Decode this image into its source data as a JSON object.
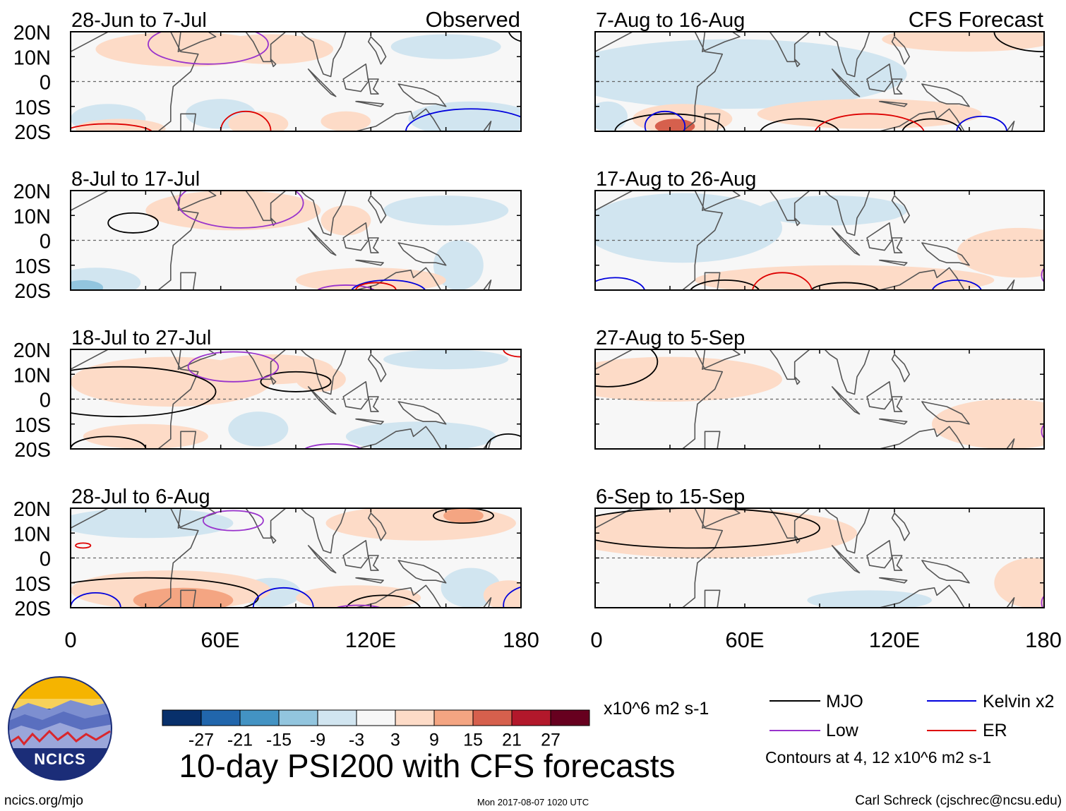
{
  "figure": {
    "title": "10-day PSI200 with CFS forecasts",
    "observed_label": "Observed",
    "forecast_label": "CFS Forecast",
    "website": "ncics.org/mjo",
    "timestamp": "Mon 2017-08-07 1020 UTC",
    "author": "Carl Schreck (cjschrec@ncsu.edu)",
    "logo_text": "NCICS"
  },
  "chart_data": {
    "type": "heatmap",
    "variable": "PSI200 anomaly",
    "units": "x10^6 m2 s-1",
    "latitude_range": [
      -20,
      20
    ],
    "longitude_range": [
      0,
      180
    ],
    "y_ticks": [
      "20N",
      "10N",
      "0",
      "10S",
      "20S"
    ],
    "x_ticks": [
      "0",
      "60E",
      "120E",
      "180"
    ],
    "colorbar": {
      "tick_labels": [
        "-27",
        "-21",
        "-15",
        "-9",
        "-3",
        "3",
        "9",
        "15",
        "21",
        "27"
      ],
      "colors": [
        "#08306b",
        "#2166ac",
        "#4393c3",
        "#92c5de",
        "#d1e5f0",
        "#f7f7f7",
        "#fddbc7",
        "#f4a582",
        "#d6604d",
        "#b2182b",
        "#67001f"
      ]
    },
    "legend": {
      "entries": [
        {
          "label": "MJO",
          "color": "#000000"
        },
        {
          "label": "Low",
          "color": "#9933cc"
        },
        {
          "label": "Kelvin x2",
          "color": "#0000dd"
        },
        {
          "label": "ER",
          "color": "#dd0000"
        }
      ],
      "note": "Contours at 4, 12 x10^6 m2 s-1"
    },
    "panels": [
      {
        "title": "28-Jun to 7-Jul",
        "column": "observed",
        "anomalies": [
          {
            "lon": 45,
            "lat": 13,
            "rlon": 35,
            "rlat": 7,
            "v": 7
          },
          {
            "lon": 80,
            "lat": 13,
            "rlon": 25,
            "rlat": 6,
            "v": 5
          },
          {
            "lon": 150,
            "lat": 14,
            "rlon": 22,
            "rlat": 5,
            "v": -4
          },
          {
            "lon": 160,
            "lat": -15,
            "rlon": 25,
            "rlat": 7,
            "v": -7
          },
          {
            "lon": 15,
            "lat": -15,
            "rlon": 15,
            "rlat": 6,
            "v": -5
          },
          {
            "lon": 60,
            "lat": -13,
            "rlon": 14,
            "rlat": 6,
            "v": -4
          },
          {
            "lon": 75,
            "lat": -17,
            "rlon": 12,
            "rlat": 5,
            "v": 5
          },
          {
            "lon": 110,
            "lat": -16,
            "rlon": 10,
            "rlat": 4,
            "v": 5
          },
          {
            "lon": 20,
            "lat": -19,
            "rlon": 18,
            "rlat": 4,
            "v": 7
          }
        ],
        "contours": [
          {
            "type": "Low",
            "lon": 55,
            "lat": 15,
            "rlon": 24,
            "rlat": 8
          },
          {
            "type": "ER",
            "lon": 70,
            "lat": -20,
            "rlon": 10,
            "rlat": 8
          },
          {
            "type": "ER",
            "lon": 15,
            "lat": -21,
            "rlon": 18,
            "rlat": 4
          },
          {
            "type": "Kelvin",
            "lon": 160,
            "lat": -20,
            "rlon": 26,
            "rlat": 9
          },
          {
            "type": "MJO",
            "lon": 182,
            "lat": 21,
            "rlon": 7,
            "rlat": 5
          }
        ]
      },
      {
        "title": "8-Jul to 17-Jul",
        "column": "observed",
        "anomalies": [
          {
            "lon": 65,
            "lat": 12,
            "rlon": 35,
            "rlat": 8,
            "v": 7
          },
          {
            "lon": 120,
            "lat": -16,
            "rlon": 30,
            "rlat": 5,
            "v": 5
          },
          {
            "lon": 10,
            "lat": -17,
            "rlon": 18,
            "rlat": 6,
            "v": -7
          },
          {
            "lon": 5,
            "lat": -19,
            "rlon": 8,
            "rlat": 3,
            "v": -14
          },
          {
            "lon": 150,
            "lat": 12,
            "rlon": 25,
            "rlat": 6,
            "v": -4
          },
          {
            "lon": 155,
            "lat": -10,
            "rlon": 10,
            "rlat": 10,
            "v": -4
          },
          {
            "lon": 110,
            "lat": 8,
            "rlon": 10,
            "rlat": 6,
            "v": 4
          }
        ],
        "contours": [
          {
            "type": "MJO",
            "lon": 25,
            "lat": 7,
            "rlon": 10,
            "rlat": 4
          },
          {
            "type": "Low",
            "lon": 68,
            "lat": 15,
            "rlon": 25,
            "rlat": 10
          },
          {
            "type": "Low",
            "lon": 110,
            "lat": -21,
            "rlon": 12,
            "rlat": 3
          },
          {
            "type": "Kelvin",
            "lon": 127,
            "lat": -21,
            "rlon": 15,
            "rlat": 5
          },
          {
            "type": "ER",
            "lon": 122,
            "lat": -20,
            "rlon": 8,
            "rlat": 3
          }
        ]
      },
      {
        "title": "18-Jul to 27-Jul",
        "column": "observed",
        "anomalies": [
          {
            "lon": 40,
            "lat": 7,
            "rlon": 40,
            "rlat": 10,
            "v": 5
          },
          {
            "lon": 80,
            "lat": 12,
            "rlon": 25,
            "rlat": 6,
            "v": 5
          },
          {
            "lon": 30,
            "lat": -15,
            "rlon": 25,
            "rlat": 5,
            "v": 6
          },
          {
            "lon": 140,
            "lat": -15,
            "rlon": 30,
            "rlat": 6,
            "v": -6
          },
          {
            "lon": 75,
            "lat": -12,
            "rlon": 12,
            "rlat": 7,
            "v": -4
          },
          {
            "lon": 150,
            "lat": 16,
            "rlon": 25,
            "rlat": 4,
            "v": -4
          },
          {
            "lon": 100,
            "lat": 8,
            "rlon": 10,
            "rlat": 5,
            "v": 4
          }
        ],
        "contours": [
          {
            "type": "MJO",
            "lon": 20,
            "lat": 3,
            "rlon": 38,
            "rlat": 10
          },
          {
            "type": "MJO",
            "lon": 90,
            "lat": 7,
            "rlon": 14,
            "rlat": 4
          },
          {
            "type": "MJO",
            "lon": 175,
            "lat": -20,
            "rlon": 9,
            "rlat": 6
          },
          {
            "type": "MJO",
            "lon": 15,
            "lat": -20,
            "rlon": 15,
            "rlat": 5
          },
          {
            "type": "Low",
            "lon": 65,
            "lat": 13,
            "rlon": 18,
            "rlat": 6
          },
          {
            "type": "Low",
            "lon": 105,
            "lat": -21,
            "rlon": 12,
            "rlat": 3
          },
          {
            "type": "ER",
            "lon": 180,
            "lat": 20,
            "rlon": 7,
            "rlat": 3
          }
        ]
      },
      {
        "title": "28-Jul to 6-Aug",
        "column": "observed",
        "anomalies": [
          {
            "lon": 30,
            "lat": 14,
            "rlon": 35,
            "rlat": 6,
            "v": -5
          },
          {
            "lon": 140,
            "lat": 14,
            "rlon": 38,
            "rlat": 7,
            "v": 6
          },
          {
            "lon": 157,
            "lat": 17,
            "rlon": 8,
            "rlat": 3,
            "v": 12
          },
          {
            "lon": 40,
            "lat": -13,
            "rlon": 40,
            "rlat": 8,
            "v": 8
          },
          {
            "lon": 45,
            "lat": -17,
            "rlon": 20,
            "rlat": 5,
            "v": 13
          },
          {
            "lon": 115,
            "lat": -16,
            "rlon": 25,
            "rlat": 5,
            "v": 5
          },
          {
            "lon": 175,
            "lat": -15,
            "rlon": 10,
            "rlat": 6,
            "v": 5
          },
          {
            "lon": 80,
            "lat": -14,
            "rlon": 12,
            "rlat": 6,
            "v": -4
          },
          {
            "lon": 160,
            "lat": -12,
            "rlon": 12,
            "rlat": 8,
            "v": -4
          }
        ],
        "contours": [
          {
            "type": "MJO",
            "lon": 30,
            "lat": -16,
            "rlon": 45,
            "rlat": 8
          },
          {
            "type": "MJO",
            "lon": 157,
            "lat": 17,
            "rlon": 12,
            "rlat": 3
          },
          {
            "type": "MJO",
            "lon": 125,
            "lat": -21,
            "rlon": 15,
            "rlat": 6
          },
          {
            "type": "Low",
            "lon": 65,
            "lat": 15,
            "rlon": 12,
            "rlat": 4
          },
          {
            "type": "Low",
            "lon": 115,
            "lat": -21,
            "rlon": 10,
            "rlat": 2
          },
          {
            "type": "Kelvin",
            "lon": 85,
            "lat": -20,
            "rlon": 12,
            "rlat": 8
          },
          {
            "type": "Kelvin",
            "lon": 10,
            "lat": -20,
            "rlon": 10,
            "rlat": 6
          },
          {
            "type": "Kelvin",
            "lon": 185,
            "lat": -19,
            "rlon": 12,
            "rlat": 8
          },
          {
            "type": "ER",
            "lon": 5,
            "lat": 5,
            "rlon": 3,
            "rlat": 1
          }
        ]
      },
      {
        "title": "7-Aug to 16-Aug",
        "column": "forecast",
        "anomalies": [
          {
            "lon": 55,
            "lat": 3,
            "rlon": 70,
            "rlat": 14,
            "v": -5
          },
          {
            "lon": 150,
            "lat": 17,
            "rlon": 35,
            "rlat": 5,
            "v": 4
          },
          {
            "lon": 110,
            "lat": -13,
            "rlon": 45,
            "rlat": 6,
            "v": 5
          },
          {
            "lon": 35,
            "lat": -15,
            "rlon": 20,
            "rlat": 6,
            "v": 7
          },
          {
            "lon": 32,
            "lat": -18,
            "rlon": 8,
            "rlat": 3,
            "v": 16
          },
          {
            "lon": 5,
            "lat": -14,
            "rlon": 8,
            "rlat": 6,
            "v": -8
          }
        ],
        "contours": [
          {
            "type": "MJO",
            "lon": 30,
            "lat": -20,
            "rlon": 22,
            "rlat": 7
          },
          {
            "type": "MJO",
            "lon": 82,
            "lat": -21,
            "rlon": 16,
            "rlat": 6
          },
          {
            "type": "MJO",
            "lon": 135,
            "lat": -21,
            "rlon": 12,
            "rlat": 6
          },
          {
            "type": "MJO",
            "lon": 180,
            "lat": 20,
            "rlon": 20,
            "rlat": 8
          },
          {
            "type": "Kelvin",
            "lon": 28,
            "lat": -18,
            "rlon": 8,
            "rlat": 6
          },
          {
            "type": "Kelvin",
            "lon": 155,
            "lat": -20,
            "rlon": 10,
            "rlat": 6
          },
          {
            "type": "ER",
            "lon": 110,
            "lat": -21,
            "rlon": 22,
            "rlat": 8
          }
        ]
      },
      {
        "title": "17-Aug to 26-Aug",
        "column": "forecast",
        "anomalies": [
          {
            "lon": 35,
            "lat": 5,
            "rlon": 40,
            "rlat": 14,
            "v": -5
          },
          {
            "lon": 95,
            "lat": 12,
            "rlon": 30,
            "rlat": 6,
            "v": -4
          },
          {
            "lon": 100,
            "lat": -16,
            "rlon": 60,
            "rlat": 6,
            "v": 5
          },
          {
            "lon": 170,
            "lat": -5,
            "rlon": 25,
            "rlat": 10,
            "v": 5
          }
        ],
        "contours": [
          {
            "type": "MJO",
            "lon": 52,
            "lat": -21,
            "rlon": 14,
            "rlat": 5
          },
          {
            "type": "MJO",
            "lon": 100,
            "lat": -21,
            "rlon": 14,
            "rlat": 4
          },
          {
            "type": "ER",
            "lon": 75,
            "lat": -21,
            "rlon": 12,
            "rlat": 8
          },
          {
            "type": "Kelvin",
            "lon": 8,
            "lat": -21,
            "rlon": 12,
            "rlat": 6
          },
          {
            "type": "Kelvin",
            "lon": 145,
            "lat": -21,
            "rlon": 10,
            "rlat": 5
          },
          {
            "type": "Low",
            "lon": 181,
            "lat": -14,
            "rlon": 2,
            "rlat": 3
          }
        ]
      },
      {
        "title": "27-Aug to 5-Sep",
        "column": "forecast",
        "anomalies": [
          {
            "lon": 30,
            "lat": 8,
            "rlon": 45,
            "rlat": 9,
            "v": 5
          },
          {
            "lon": 165,
            "lat": -10,
            "rlon": 30,
            "rlat": 10,
            "v": 5
          }
        ],
        "contours": [
          {
            "type": "MJO",
            "lon": 5,
            "lat": 15,
            "rlon": 20,
            "rlat": 10
          },
          {
            "type": "Low",
            "lon": 181,
            "lat": -13,
            "rlon": 2,
            "rlat": 3
          }
        ]
      },
      {
        "title": "6-Sep to 15-Sep",
        "column": "forecast",
        "anomalies": [
          {
            "lon": 45,
            "lat": 10,
            "rlon": 60,
            "rlat": 10,
            "v": 6
          },
          {
            "lon": 175,
            "lat": -10,
            "rlon": 15,
            "rlat": 10,
            "v": 4
          },
          {
            "lon": 110,
            "lat": -17,
            "rlon": 25,
            "rlat": 4,
            "v": -3.5
          }
        ],
        "contours": [
          {
            "type": "MJO",
            "lon": 40,
            "lat": 12,
            "rlon": 50,
            "rlat": 8
          },
          {
            "type": "Low",
            "lon": 181,
            "lat": -18,
            "rlon": 2,
            "rlat": 3
          }
        ]
      }
    ]
  }
}
